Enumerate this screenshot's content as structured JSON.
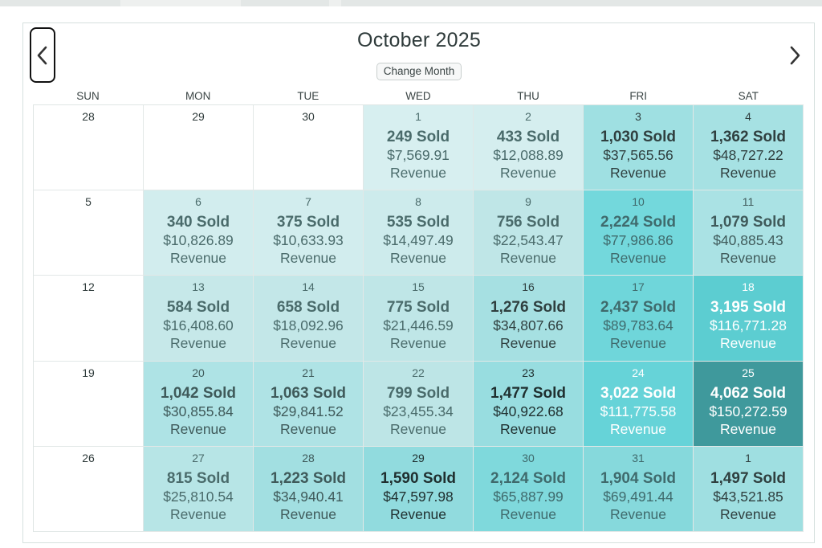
{
  "calendar": {
    "title": "October 2025",
    "change_month_label": "Change Month",
    "prev_icon": "chevron-left-icon",
    "next_icon": "chevron-right-icon",
    "weekdays": [
      "SUN",
      "MON",
      "TUE",
      "WED",
      "THU",
      "FRI",
      "SAT"
    ],
    "revenue_word": "Revenue",
    "selected_date": "25",
    "days": [
      {
        "date": "28",
        "sold": "",
        "revenue": "",
        "bg": "#ffffff",
        "fg": "#2f3b3b"
      },
      {
        "date": "29",
        "sold": "",
        "revenue": "",
        "bg": "#ffffff",
        "fg": "#2f3b3b"
      },
      {
        "date": "30",
        "sold": "",
        "revenue": "",
        "bg": "#ffffff",
        "fg": "#2f3b3b"
      },
      {
        "date": "1",
        "sold": "249 Sold",
        "revenue": "$7,569.91",
        "bg": "#d7eff0",
        "fg": "#4a6b6b"
      },
      {
        "date": "2",
        "sold": "433 Sold",
        "revenue": "$12,088.89",
        "bg": "#d5eeef",
        "fg": "#4a6b6b"
      },
      {
        "date": "3",
        "sold": "1,030 Sold",
        "revenue": "$37,565.56",
        "bg": "#9fe0e2",
        "fg": "#2f3f3f"
      },
      {
        "date": "4",
        "sold": "1,362 Sold",
        "revenue": "$48,727.22",
        "bg": "#a6e1e3",
        "fg": "#2f3f3f"
      },
      {
        "date": "5",
        "sold": "",
        "revenue": "",
        "bg": "#ffffff",
        "fg": "#2f3b3b"
      },
      {
        "date": "6",
        "sold": "340 Sold",
        "revenue": "$10,826.89",
        "bg": "#d2edee",
        "fg": "#4a6b6b"
      },
      {
        "date": "7",
        "sold": "375 Sold",
        "revenue": "$10,633.93",
        "bg": "#d2edee",
        "fg": "#4a6b6b"
      },
      {
        "date": "8",
        "sold": "535 Sold",
        "revenue": "$14,497.49",
        "bg": "#cdebec",
        "fg": "#4a6b6b"
      },
      {
        "date": "9",
        "sold": "756 Sold",
        "revenue": "$22,543.47",
        "bg": "#bfe6e7",
        "fg": "#4a6b6b"
      },
      {
        "date": "10",
        "sold": "2,224 Sold",
        "revenue": "$77,986.86",
        "bg": "#73d8dc",
        "fg": "#3f6a6c"
      },
      {
        "date": "11",
        "sold": "1,079 Sold",
        "revenue": "$40,885.43",
        "bg": "#aae2e4",
        "fg": "#3f5a5a"
      },
      {
        "date": "12",
        "sold": "",
        "revenue": "",
        "bg": "#ffffff",
        "fg": "#2f3b3b"
      },
      {
        "date": "13",
        "sold": "584 Sold",
        "revenue": "$16,408.60",
        "bg": "#c6e8e9",
        "fg": "#4a6b6b"
      },
      {
        "date": "14",
        "sold": "658 Sold",
        "revenue": "$18,092.96",
        "bg": "#c3e7e8",
        "fg": "#4a6b6b"
      },
      {
        "date": "15",
        "sold": "775 Sold",
        "revenue": "$21,446.59",
        "bg": "#bfe6e7",
        "fg": "#4a6b6b"
      },
      {
        "date": "16",
        "sold": "1,276 Sold",
        "revenue": "$34,807.66",
        "bg": "#a6e0e2",
        "fg": "#2f3f3f"
      },
      {
        "date": "17",
        "sold": "2,437 Sold",
        "revenue": "$89,783.64",
        "bg": "#6fd6da",
        "fg": "#3f6a6c"
      },
      {
        "date": "18",
        "sold": "3,195 Sold",
        "revenue": "$116,771.28",
        "bg": "#5ccdd1",
        "fg": "#ffffff"
      },
      {
        "date": "19",
        "sold": "",
        "revenue": "",
        "bg": "#ffffff",
        "fg": "#2f3b3b"
      },
      {
        "date": "20",
        "sold": "1,042 Sold",
        "revenue": "$30,855.84",
        "bg": "#aee3e5",
        "fg": "#3f5a5a"
      },
      {
        "date": "21",
        "sold": "1,063 Sold",
        "revenue": "$29,841.52",
        "bg": "#afe3e5",
        "fg": "#3f5a5a"
      },
      {
        "date": "22",
        "sold": "799 Sold",
        "revenue": "$23,455.34",
        "bg": "#bde5e6",
        "fg": "#4a6b6b"
      },
      {
        "date": "23",
        "sold": "1,477 Sold",
        "revenue": "$40,922.68",
        "bg": "#98dde0",
        "fg": "#1f2f2f"
      },
      {
        "date": "24",
        "sold": "3,022 Sold",
        "revenue": "$111,775.58",
        "bg": "#66d3d8",
        "fg": "#ffffff"
      },
      {
        "date": "25",
        "sold": "4,062 Sold",
        "revenue": "$150,272.59",
        "bg": "#3f999c",
        "fg": "#ffffff"
      },
      {
        "date": "26",
        "sold": "",
        "revenue": "",
        "bg": "#ffffff",
        "fg": "#2f3b3b"
      },
      {
        "date": "27",
        "sold": "815 Sold",
        "revenue": "$25,810.54",
        "bg": "#b7e5e6",
        "fg": "#4a6b6b"
      },
      {
        "date": "28",
        "sold": "1,223 Sold",
        "revenue": "$34,940.41",
        "bg": "#a2dfe1",
        "fg": "#3f5a5a"
      },
      {
        "date": "29",
        "sold": "1,590 Sold",
        "revenue": "$47,597.98",
        "bg": "#91dbde",
        "fg": "#1f2f2f"
      },
      {
        "date": "30",
        "sold": "2,124 Sold",
        "revenue": "$65,887.99",
        "bg": "#7fd9dc",
        "fg": "#3f6a6c"
      },
      {
        "date": "31",
        "sold": "1,904 Sold",
        "revenue": "$69,491.44",
        "bg": "#86d9dc",
        "fg": "#3f6a6c"
      },
      {
        "date": "1",
        "sold": "1,497 Sold",
        "revenue": "$43,521.85",
        "bg": "#9fdfe1",
        "fg": "#2f3f3f"
      }
    ]
  }
}
